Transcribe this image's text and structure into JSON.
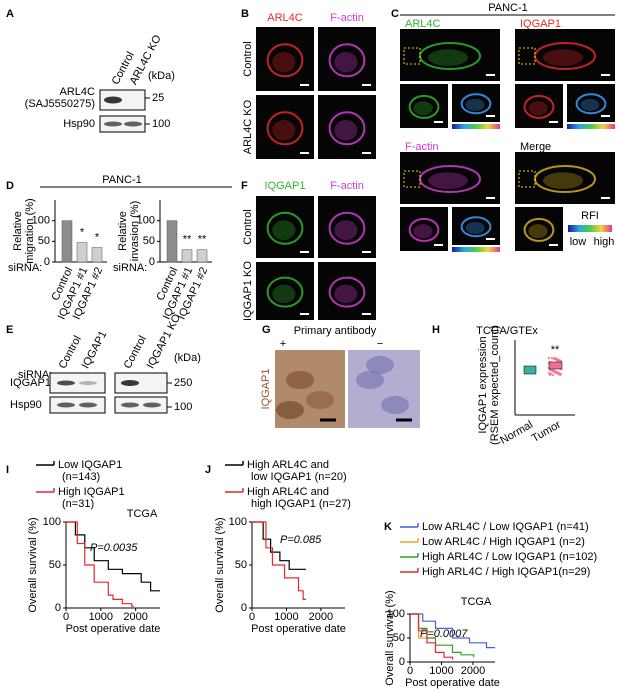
{
  "panel_letters": [
    "A",
    "B",
    "C",
    "D",
    "E",
    "F",
    "G",
    "H",
    "I",
    "J",
    "K"
  ],
  "A": {
    "lanes": [
      "Control",
      "ARL4C KO"
    ],
    "unit": "(kDa)",
    "bands": [
      "ARL4C",
      "(SAJ5550275)",
      "Hsp90"
    ],
    "markers": [
      "25",
      "100"
    ]
  },
  "B": {
    "channels": [
      "ARL4C",
      "F-actin"
    ],
    "colors": [
      "#e8282a",
      "#d23cd2"
    ],
    "conditions": [
      "Control",
      "ARL4C KO"
    ]
  },
  "C": {
    "title": "PANC-1",
    "channels": [
      "ARL4C",
      "IQGAP1",
      "F-actin",
      "Merge"
    ],
    "colors": [
      "#2fb52f",
      "#e8282a",
      "#d23cd2",
      "#000000"
    ],
    "scale_label": "RFI",
    "scale_low": "low",
    "scale_high": "high"
  },
  "D": {
    "title": "PANC-1",
    "siRNA_label": "siRNA:",
    "categories": [
      "Control",
      "IQGAP1 #1",
      "IQGAP1 #2"
    ],
    "colors": [
      "#8c8c8c",
      "#cfcfcf",
      "#cfcfcf"
    ],
    "ylim": [
      0,
      150
    ],
    "yticks": [
      0,
      50,
      100
    ],
    "charts": [
      {
        "ylabel": [
          "Relative",
          "migration (%)"
        ],
        "values": [
          100,
          47,
          35
        ],
        "significance": [
          "*",
          "*"
        ]
      },
      {
        "ylabel": [
          "Relative",
          "invasion (%)"
        ],
        "values": [
          100,
          30,
          30
        ],
        "significance": [
          "**",
          "**"
        ]
      }
    ]
  },
  "E": {
    "siRNA_label": "siRNA:",
    "lanes": [
      "Control",
      "IQGAP1",
      "Control",
      "IQGAP1 KO"
    ],
    "unit": "(kDa)",
    "bands": [
      "IQGAP1",
      "Hsp90"
    ],
    "markers": [
      "250",
      "100"
    ]
  },
  "F": {
    "channels": [
      "IQGAP1",
      "F-actin"
    ],
    "colors": [
      "#2fb52f",
      "#d23cd2"
    ],
    "conditions": [
      "Control",
      "IQGAP1 KO"
    ]
  },
  "G": {
    "title": "Primary antibody",
    "conditions": [
      "+",
      "−"
    ],
    "stain": "IQGAP1"
  },
  "H": {
    "title": "TCGA/GTEx",
    "ylabel": [
      "IQGAP1 expression",
      "(RSEM expected_count)"
    ],
    "groups": [
      "Normal",
      "Tumor"
    ],
    "significance": "**"
  },
  "I": {
    "legend": [
      {
        "lines": [
          "Low IQGAP1",
          "(n=143)"
        ],
        "color": "#000000"
      },
      {
        "lines": [
          "High IQGAP1",
          "(n=31)"
        ],
        "color": "#e8282a"
      }
    ],
    "source": "TCGA",
    "p_value": "P=0.0035",
    "ylabel": "Overall survival (%)",
    "xlabel": "Post operative date",
    "ylim": [
      0,
      100
    ],
    "yticks": [
      0,
      50,
      100
    ],
    "xlim": [
      0,
      2700
    ],
    "xticks": [
      0,
      1000,
      2000
    ]
  },
  "J": {
    "legend": [
      {
        "lines": [
          "High ARL4C and",
          "low IQGAP1 (n=20)"
        ],
        "color": "#000000"
      },
      {
        "lines": [
          "High ARL4C and",
          "high IQGAP1 (n=27)"
        ],
        "color": "#e8282a"
      }
    ],
    "p_value": "P=0.085",
    "ylabel": "Overall survival (%)",
    "xlabel": "Post operative date",
    "ylim": [
      0,
      100
    ],
    "yticks": [
      0,
      50,
      100
    ],
    "xlim": [
      0,
      2700
    ],
    "xticks": [
      0,
      1000,
      2000
    ]
  },
  "K": {
    "legend": [
      {
        "lines": [
          "Low ARL4C / Low IQGAP1 (n=41)"
        ],
        "color": "#4a5fd6"
      },
      {
        "lines": [
          "Low ARL4C / High IQGAP1 (n=2)"
        ],
        "color": "#f0a030"
      },
      {
        "lines": [
          "High ARL4C / Low IQGAP1 (n=102)"
        ],
        "color": "#2ca02c"
      },
      {
        "lines": [
          "High ARL4C / High IQGAP1(n=29)"
        ],
        "color": "#e8282a"
      }
    ],
    "source": "TCGA",
    "p_value": "P=0.0007",
    "ylabel": "Overall survival (%)",
    "xlabel": "Post operative date",
    "ylim": [
      0,
      100
    ],
    "yticks": [
      0,
      50,
      100
    ],
    "xlim": [
      0,
      2700
    ],
    "xticks": [
      0,
      1000,
      2000
    ]
  }
}
